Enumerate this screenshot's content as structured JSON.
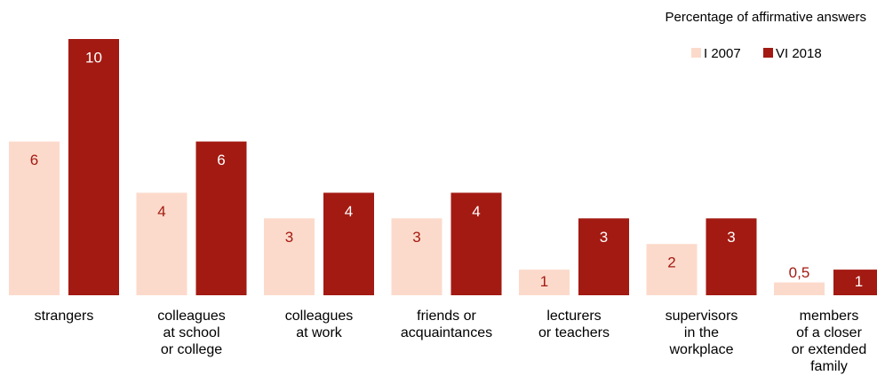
{
  "chart_data": {
    "type": "bar",
    "title": "Percentage of affirmative answers",
    "categories": [
      "strangers",
      "colleagues\nat school\nor college",
      "colleagues\nat work",
      "friends or\nacquaintances",
      "lecturers\nor teachers",
      "supervisors\nin the\nworkplace",
      "members\nof a closer\nor extended\nfamily"
    ],
    "series": [
      {
        "name": "I 2007",
        "color": "#fcdacb",
        "values": [
          6,
          4,
          3,
          3,
          1,
          2,
          0.5
        ],
        "value_labels": [
          "6",
          "4",
          "3",
          "3",
          "1",
          "2",
          "0,5"
        ]
      },
      {
        "name": "VI 2018",
        "color": "#a31a12",
        "values": [
          10,
          6,
          4,
          4,
          3,
          3,
          1
        ]
      }
    ],
    "legend": "top-right"
  }
}
